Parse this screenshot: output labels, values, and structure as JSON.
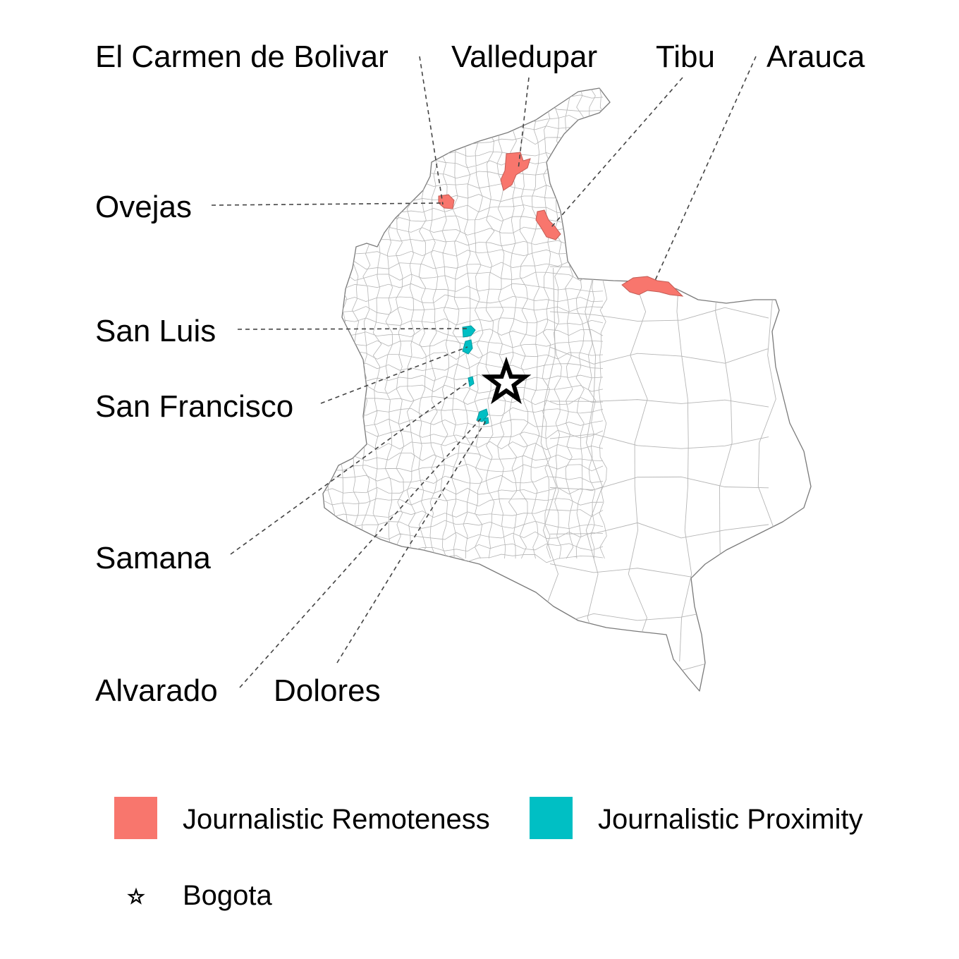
{
  "map": {
    "region_labels": {
      "el_carmen": "El Carmen de Bolivar",
      "valledupar": "Valledupar",
      "tibu": "Tibu",
      "arauca": "Arauca",
      "ovejas": "Ovejas",
      "san_luis": "San Luis",
      "san_francisco": "San Francisco",
      "samana": "Samana",
      "alvarado": "Alvarado",
      "dolores": "Dolores"
    },
    "groups": {
      "remoteness": [
        "El Carmen de Bolivar",
        "Valledupar",
        "Tibu",
        "Arauca",
        "Ovejas"
      ],
      "proximity": [
        "San Luis",
        "San Francisco",
        "Samana",
        "Alvarado",
        "Dolores"
      ]
    },
    "capital_marker": "Bogota"
  },
  "legend": {
    "remoteness_label": "Journalistic Remoteness",
    "proximity_label": "Journalistic Proximity",
    "bogota_label": "Bogota"
  },
  "colors": {
    "remoteness": "#F8766D",
    "proximity": "#00BFC4",
    "border": "#7a7a7a",
    "leader": "#444444"
  },
  "icons": {
    "capital": "star-icon"
  }
}
